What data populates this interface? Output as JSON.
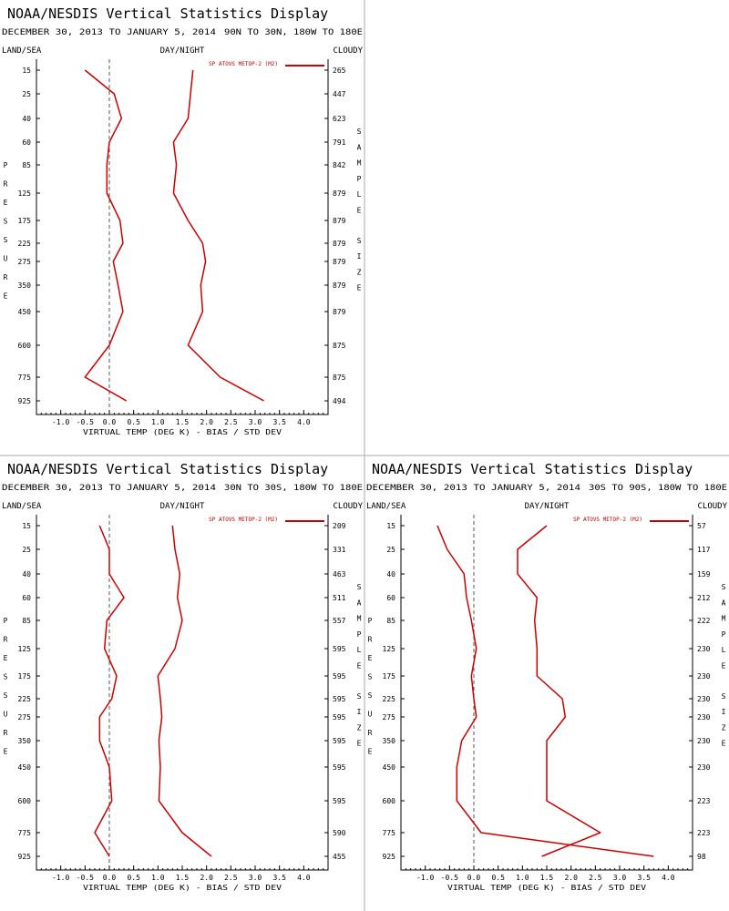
{
  "panel_title": "NOAA/NESDIS Vertical Statistics Display",
  "date_range": "DECEMBER 30, 2013 TO JANUARY 5, 2014",
  "corner_labels": {
    "left": "LAND/SEA",
    "center": "DAY/NIGHT",
    "right": "CLOUDY"
  },
  "left_axis_label": "PRESSURE",
  "right_axis_label": "SAMPLE SIZE",
  "x_axis_label": "VIRTUAL TEMP (DEG K) - BIAS / STD DEV",
  "legend_label": "SP ATOVS METOP-2 (M2)",
  "line_color": "#cc0000",
  "pressure_levels": [
    "15",
    "25",
    "40",
    "60",
    "85",
    "125",
    "175",
    "225",
    "275",
    "350",
    "450",
    "600",
    "775",
    "925"
  ],
  "x_ticks": [
    "-1.0",
    "-0.5",
    "0.0",
    "0.5",
    "1.0",
    "1.5",
    "2.0",
    "2.5",
    "3.0",
    "3.5",
    "4.0"
  ],
  "chart_data": [
    {
      "type": "line",
      "region": "90N TO 30N, 180W TO 180E",
      "xlim": [
        -1.5,
        4.5
      ],
      "y": [
        15,
        25,
        40,
        60,
        85,
        125,
        175,
        225,
        275,
        350,
        450,
        600,
        775,
        925
      ],
      "sample_size": [
        "265",
        "447",
        "623",
        "791",
        "842",
        "879",
        "879",
        "879",
        "879",
        "879",
        "879",
        "875",
        "875",
        "494"
      ],
      "series": [
        {
          "values": [
            -0.5,
            0.1,
            0.25,
            0.0,
            -0.05,
            -0.05,
            0.22,
            0.28,
            0.08,
            0.18,
            0.28,
            0.0,
            -0.5,
            0.35
          ]
        },
        {
          "values": [
            1.72,
            1.67,
            1.62,
            1.32,
            1.38,
            1.32,
            1.62,
            1.92,
            1.98,
            1.88,
            1.92,
            1.62,
            2.28,
            3.18
          ]
        }
      ]
    },
    {
      "type": "line",
      "region": "30N TO 30S, 180W TO 180E",
      "xlim": [
        -1.5,
        4.5
      ],
      "y": [
        15,
        25,
        40,
        60,
        85,
        125,
        175,
        225,
        275,
        350,
        450,
        600,
        775,
        925
      ],
      "sample_size": [
        "209",
        "331",
        "463",
        "511",
        "557",
        "595",
        "595",
        "595",
        "595",
        "595",
        "595",
        "595",
        "590",
        "455"
      ],
      "series": [
        {
          "values": [
            -0.2,
            0.0,
            0.0,
            0.3,
            -0.05,
            -0.1,
            0.15,
            0.05,
            -0.2,
            -0.2,
            0.0,
            0.05,
            -0.3,
            0.0
          ]
        },
        {
          "values": [
            1.3,
            1.35,
            1.45,
            1.4,
            1.5,
            1.35,
            1.0,
            1.05,
            1.08,
            1.02,
            1.05,
            1.02,
            1.5,
            2.1
          ]
        }
      ]
    },
    {
      "type": "line",
      "region": "30S TO 90S, 180W TO 180E",
      "xlim": [
        -1.5,
        4.5
      ],
      "y": [
        15,
        25,
        40,
        60,
        85,
        125,
        175,
        225,
        275,
        350,
        450,
        600,
        775,
        925
      ],
      "sample_size": [
        "57",
        "117",
        "159",
        "212",
        "222",
        "230",
        "230",
        "230",
        "230",
        "230",
        "230",
        "223",
        "223",
        "98"
      ],
      "series": [
        {
          "values": [
            -0.75,
            -0.55,
            -0.2,
            -0.15,
            -0.05,
            0.05,
            -0.05,
            0.0,
            0.05,
            -0.25,
            -0.35,
            -0.35,
            0.15,
            3.7
          ]
        },
        {
          "values": [
            1.5,
            0.9,
            0.9,
            1.3,
            1.25,
            1.3,
            1.3,
            1.82,
            1.88,
            1.5,
            1.5,
            1.5,
            2.6,
            1.4
          ]
        }
      ]
    }
  ]
}
